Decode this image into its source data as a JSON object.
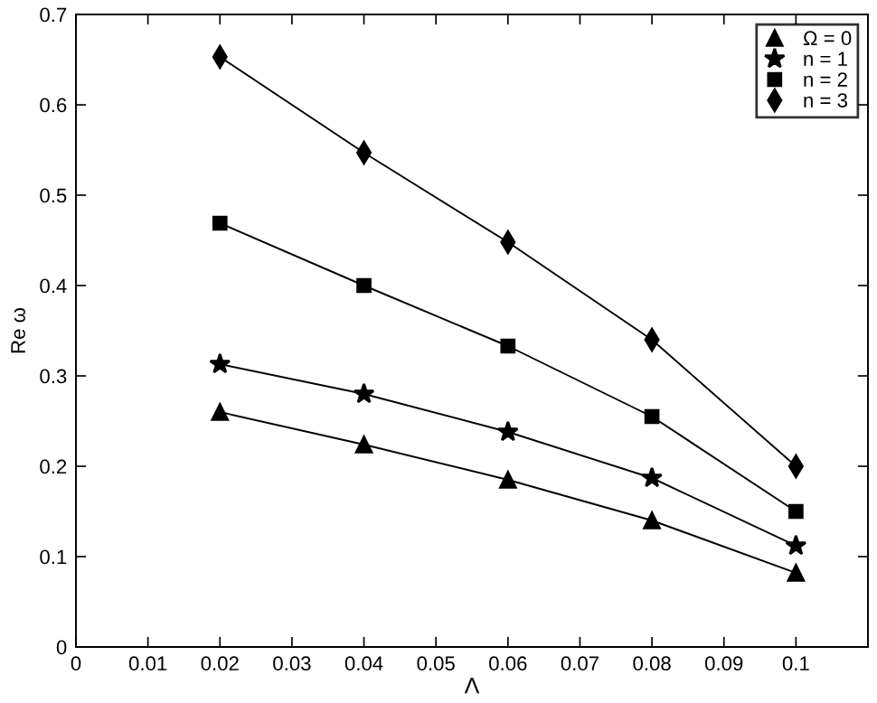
{
  "chart_data": {
    "type": "line",
    "xlabel": "Λ",
    "ylabel": "Re ω",
    "x": [
      0.02,
      0.04,
      0.06,
      0.08,
      0.1
    ],
    "series": [
      {
        "name": "Ω = 0",
        "color": "#000000",
        "marker": "triangle",
        "values": [
          0.26,
          0.224,
          0.185,
          0.14,
          0.082
        ]
      },
      {
        "name": "n = 1",
        "color": "#000000",
        "marker": "star",
        "values": [
          0.313,
          0.28,
          0.238,
          0.187,
          0.112
        ]
      },
      {
        "name": "n = 2",
        "color": "#000000",
        "marker": "square",
        "values": [
          0.469,
          0.4,
          0.333,
          0.255,
          0.15
        ]
      },
      {
        "name": "n = 3",
        "color": "#000000",
        "marker": "diamond",
        "values": [
          0.653,
          0.547,
          0.448,
          0.34,
          0.2
        ]
      }
    ],
    "xlim": [
      0,
      0.11
    ],
    "ylim": [
      0,
      0.7
    ],
    "xticks": [
      0,
      0.01,
      0.02,
      0.03,
      0.04,
      0.05,
      0.06,
      0.07,
      0.08,
      0.09,
      0.1
    ],
    "yticks": [
      0,
      0.1,
      0.2,
      0.3,
      0.4,
      0.5,
      0.6,
      0.7
    ],
    "grid": false,
    "legend": "top right",
    "line_style": "solid"
  }
}
